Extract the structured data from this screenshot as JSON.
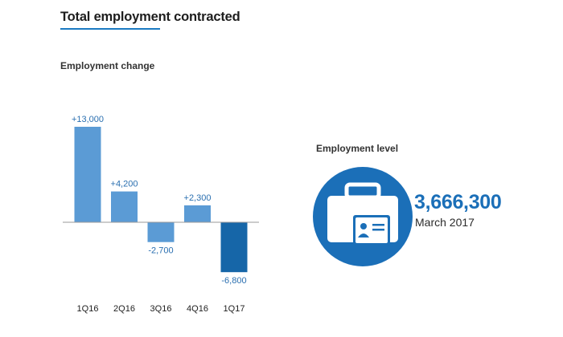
{
  "title": "Total employment contracted",
  "employment_change_label": "Employment change",
  "employment_level": {
    "label": "Employment level",
    "value": "3,666,300",
    "date": "March 2017",
    "icon": "briefcase-id-card-icon"
  },
  "colors": {
    "bar": "#5b9bd5",
    "bar_highlight": "#1666a8",
    "label": "#2a6fb0",
    "accent": "#1b7ac2",
    "circle": "#1b6fb8"
  },
  "chart_data": {
    "type": "bar",
    "title": "Employment change",
    "categories": [
      "1Q16",
      "2Q16",
      "3Q16",
      "4Q16",
      "1Q17"
    ],
    "values": [
      13000,
      4200,
      -2700,
      2300,
      -6800
    ],
    "data_labels": [
      "+13,000",
      "+4,200",
      "-2,700",
      "+2,300",
      "-6,800"
    ],
    "highlight_category": "1Q17",
    "ylim": [
      -7000,
      14000
    ],
    "xlabel": "",
    "ylabel": "",
    "grid": false,
    "legend": "none"
  }
}
